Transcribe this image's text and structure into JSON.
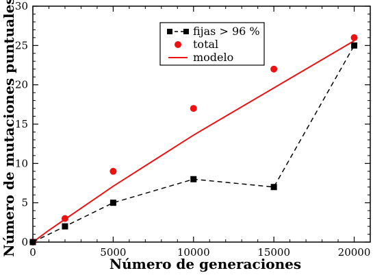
{
  "chart_data": {
    "type": "line",
    "title": "",
    "xlabel": "Número de generaciones",
    "ylabel": "Número de mutaciones puntuales",
    "xlim": [
      0,
      21000
    ],
    "ylim": [
      0,
      30
    ],
    "xticks": [
      0,
      5000,
      10000,
      15000,
      20000
    ],
    "yticks": [
      0,
      5,
      10,
      15,
      20,
      25,
      30
    ],
    "xtick_labels": [
      "0",
      "5000",
      "10000",
      "15000",
      "20000"
    ],
    "ytick_labels": [
      "0",
      "5",
      "10",
      "15",
      "20",
      "25",
      "30"
    ],
    "grid": false,
    "legend_position": "top-center",
    "series": [
      {
        "name": "fijas > 96 %",
        "style": "dashed-line-square-markers",
        "color": "#000000",
        "x": [
          0,
          2000,
          5000,
          10000,
          15000,
          20000
        ],
        "y": [
          0,
          2,
          5,
          8,
          7,
          25
        ]
      },
      {
        "name": "total",
        "style": "circle-markers",
        "color": "#ee1111",
        "x": [
          0,
          2000,
          5000,
          10000,
          15000,
          20000
        ],
        "y": [
          0,
          3,
          9,
          17,
          22,
          26
        ]
      },
      {
        "name": "modelo",
        "style": "solid-line",
        "color": "#ee1111",
        "x": [
          0,
          1000,
          2000,
          3000,
          4000,
          5000,
          6000,
          7000,
          8000,
          9000,
          10000,
          11000,
          12000,
          13000,
          14000,
          15000,
          16000,
          17000,
          18000,
          19000,
          20000
        ],
        "y": [
          0,
          1.5,
          2.9,
          4.3,
          5.7,
          7.1,
          8.4,
          9.7,
          11.0,
          12.3,
          13.6,
          14.8,
          16.0,
          17.2,
          18.4,
          19.6,
          20.8,
          22.0,
          23.2,
          24.4,
          25.6
        ]
      }
    ]
  }
}
